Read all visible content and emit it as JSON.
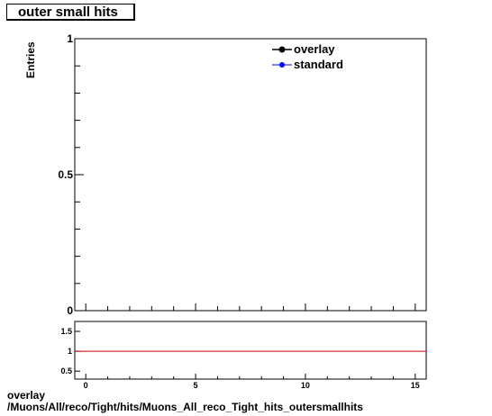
{
  "title": "outer small hits",
  "chart_data": [
    {
      "type": "line",
      "panel": "main",
      "ylabel": "Entries",
      "xlabel": "",
      "xlim": [
        -0.5,
        15.5
      ],
      "ylim": [
        0,
        1
      ],
      "y_tick_labels": [
        "0",
        "0.5",
        "1"
      ],
      "legend": {
        "placement": "top-right",
        "entries": [
          "overlay",
          "standard"
        ]
      },
      "series": [
        {
          "name": "overlay",
          "color": "#000000",
          "x": [],
          "y": []
        },
        {
          "name": "standard",
          "color": "#0000ff",
          "x": [],
          "y": []
        }
      ]
    },
    {
      "type": "line",
      "panel": "ratio",
      "xlim": [
        -0.5,
        15.5
      ],
      "ylim": [
        0.3,
        1.75
      ],
      "x_tick_labels": [
        "0",
        "5",
        "10",
        "15"
      ],
      "y_tick_labels": [
        "0.5",
        "1",
        "1.5"
      ],
      "series": [
        {
          "name": "ratio",
          "color": "#cc0000",
          "x": [
            -0.5,
            15.5
          ],
          "y": [
            1,
            1
          ]
        }
      ]
    }
  ],
  "footer": {
    "line1": "overlay",
    "line2": "/Muons/All/reco/Tight/hits/Muons_All_reco_Tight_hits_outersmallhits"
  }
}
